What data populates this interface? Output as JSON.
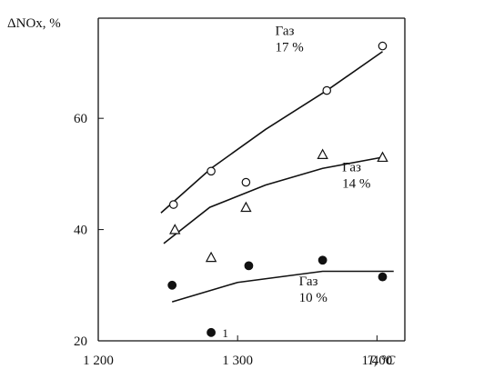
{
  "chart_data": {
    "type": "scatter",
    "title": "",
    "ylabel": "ΔNOx, %",
    "xlabel": "T, °C",
    "xlim": [
      1200,
      1420
    ],
    "ylim": [
      20,
      78
    ],
    "x_ticks": [
      {
        "value": 1200,
        "label": "1 200"
      },
      {
        "value": 1300,
        "label": "1 300"
      },
      {
        "value": 1400,
        "label": "1 400"
      }
    ],
    "y_ticks": [
      {
        "value": 20,
        "label": "20"
      },
      {
        "value": 40,
        "label": "40"
      },
      {
        "value": 60,
        "label": "60"
      }
    ],
    "grid": false,
    "series": [
      {
        "name": "Газ 17 %",
        "label_lines": [
          "Газ",
          "17 %"
        ],
        "marker": "open-circle",
        "points": [
          {
            "x": 1254,
            "y": 44.5
          },
          {
            "x": 1281,
            "y": 50.5
          },
          {
            "x": 1306,
            "y": 48.5
          },
          {
            "x": 1364,
            "y": 65
          },
          {
            "x": 1404,
            "y": 73
          }
        ],
        "trend": [
          {
            "x": 1245,
            "y": 43
          },
          {
            "x": 1281,
            "y": 51
          },
          {
            "x": 1320,
            "y": 58
          },
          {
            "x": 1364,
            "y": 65
          },
          {
            "x": 1404,
            "y": 72
          }
        ]
      },
      {
        "name": "Газ 14 %",
        "label_lines": [
          "Газ",
          "14 %"
        ],
        "marker": "open-triangle",
        "points": [
          {
            "x": 1255,
            "y": 40
          },
          {
            "x": 1281,
            "y": 35
          },
          {
            "x": 1306,
            "y": 44
          },
          {
            "x": 1361,
            "y": 53.5
          },
          {
            "x": 1404,
            "y": 53
          }
        ],
        "trend": [
          {
            "x": 1247,
            "y": 37.5
          },
          {
            "x": 1280,
            "y": 44
          },
          {
            "x": 1320,
            "y": 48
          },
          {
            "x": 1361,
            "y": 51
          },
          {
            "x": 1404,
            "y": 53
          }
        ]
      },
      {
        "name": "Газ 10 %",
        "label_lines": [
          "Газ",
          "10 %"
        ],
        "marker": "filled-circle",
        "points": [
          {
            "x": 1253,
            "y": 30
          },
          {
            "x": 1281,
            "y": 21.5
          },
          {
            "x": 1308,
            "y": 33.5
          },
          {
            "x": 1361,
            "y": 34.5
          },
          {
            "x": 1404,
            "y": 31.5
          }
        ],
        "trend": [
          {
            "x": 1253,
            "y": 27
          },
          {
            "x": 1300,
            "y": 30.5
          },
          {
            "x": 1361,
            "y": 32.5
          },
          {
            "x": 1412,
            "y": 32.5
          }
        ]
      }
    ],
    "annotations": [
      {
        "text": "1",
        "x": 1289,
        "y": 21.5
      }
    ]
  }
}
